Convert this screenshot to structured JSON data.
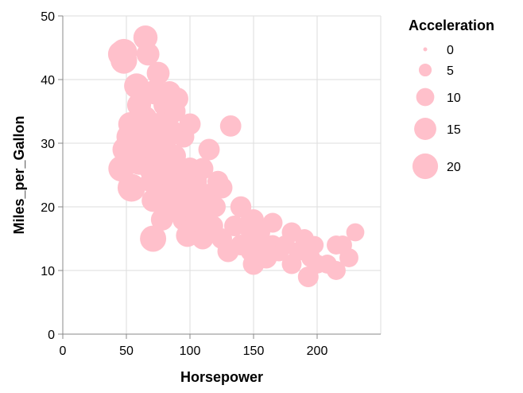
{
  "chart_data": {
    "type": "scatter",
    "xlabel": "Horsepower",
    "ylabel": "Miles_per_Gallon",
    "xlim": [
      0,
      250
    ],
    "ylim": [
      0,
      50
    ],
    "xticks": [
      0,
      50,
      100,
      150,
      200
    ],
    "yticks": [
      0,
      10,
      20,
      30,
      40,
      50
    ],
    "grid": true,
    "size_field": "Acceleration",
    "size_range": [
      0,
      25
    ],
    "point_color": "#ffc0cb",
    "legend": {
      "title": "Acceleration",
      "placement": "right",
      "values": [
        0,
        5,
        10,
        15,
        20
      ]
    },
    "points": [
      {
        "hp": 46,
        "mpg": 26,
        "acc": 20.5
      },
      {
        "hp": 46,
        "mpg": 44,
        "acc": 21.5
      },
      {
        "hp": 48,
        "mpg": 43,
        "acc": 21.5
      },
      {
        "hp": 48,
        "mpg": 44.3,
        "acc": 21.7
      },
      {
        "hp": 49,
        "mpg": 29,
        "acc": 19.5
      },
      {
        "hp": 52,
        "mpg": 31,
        "acc": 19
      },
      {
        "hp": 52,
        "mpg": 29,
        "acc": 22
      },
      {
        "hp": 53,
        "mpg": 33,
        "acc": 17.5
      },
      {
        "hp": 54,
        "mpg": 23,
        "acc": 23.5
      },
      {
        "hp": 58,
        "mpg": 39,
        "acc": 19
      },
      {
        "hp": 60,
        "mpg": 36,
        "acc": 17.5
      },
      {
        "hp": 60,
        "mpg": 27,
        "acc": 19
      },
      {
        "hp": 62,
        "mpg": 38,
        "acc": 17
      },
      {
        "hp": 63,
        "mpg": 30,
        "acc": 15.5
      },
      {
        "hp": 65,
        "mpg": 46.6,
        "acc": 17.9
      },
      {
        "hp": 65,
        "mpg": 34,
        "acc": 16
      },
      {
        "hp": 67,
        "mpg": 44,
        "acc": 16
      },
      {
        "hp": 67,
        "mpg": 33,
        "acc": 16
      },
      {
        "hp": 68,
        "mpg": 29,
        "acc": 18.5
      },
      {
        "hp": 69,
        "mpg": 26,
        "acc": 17
      },
      {
        "hp": 70,
        "mpg": 24,
        "acc": 16
      },
      {
        "hp": 70,
        "mpg": 31,
        "acc": 17
      },
      {
        "hp": 71,
        "mpg": 15,
        "acc": 21
      },
      {
        "hp": 71,
        "mpg": 21,
        "acc": 16
      },
      {
        "hp": 72,
        "mpg": 38,
        "acc": 18
      },
      {
        "hp": 74,
        "mpg": 27,
        "acc": 16
      },
      {
        "hp": 75,
        "mpg": 33,
        "acc": 15
      },
      {
        "hp": 75,
        "mpg": 41,
        "acc": 16
      },
      {
        "hp": 76,
        "mpg": 25,
        "acc": 15
      },
      {
        "hp": 78,
        "mpg": 28,
        "acc": 15.5
      },
      {
        "hp": 78,
        "mpg": 18,
        "acc": 15
      },
      {
        "hp": 80,
        "mpg": 30,
        "acc": 16
      },
      {
        "hp": 80,
        "mpg": 36,
        "acc": 15
      },
      {
        "hp": 81,
        "mpg": 24,
        "acc": 16
      },
      {
        "hp": 83,
        "mpg": 22,
        "acc": 16
      },
      {
        "hp": 84,
        "mpg": 38,
        "acc": 15
      },
      {
        "hp": 85,
        "mpg": 32,
        "acc": 15
      },
      {
        "hp": 85,
        "mpg": 26,
        "acc": 16
      },
      {
        "hp": 86,
        "mpg": 20,
        "acc": 15
      },
      {
        "hp": 88,
        "mpg": 35,
        "acc": 14.5
      },
      {
        "hp": 88,
        "mpg": 28,
        "acc": 15.5
      },
      {
        "hp": 88,
        "mpg": 22,
        "acc": 15
      },
      {
        "hp": 90,
        "mpg": 37,
        "acc": 15
      },
      {
        "hp": 90,
        "mpg": 26,
        "acc": 15
      },
      {
        "hp": 92,
        "mpg": 21,
        "acc": 15.5
      },
      {
        "hp": 95,
        "mpg": 31,
        "acc": 14
      },
      {
        "hp": 95,
        "mpg": 24,
        "acc": 14
      },
      {
        "hp": 95,
        "mpg": 18,
        "acc": 15
      },
      {
        "hp": 97,
        "mpg": 22,
        "acc": 14.5
      },
      {
        "hp": 98,
        "mpg": 15.5,
        "acc": 16
      },
      {
        "hp": 100,
        "mpg": 33,
        "acc": 14
      },
      {
        "hp": 100,
        "mpg": 26,
        "acc": 15
      },
      {
        "hp": 100,
        "mpg": 20,
        "acc": 15
      },
      {
        "hp": 102,
        "mpg": 17,
        "acc": 15
      },
      {
        "hp": 105,
        "mpg": 24,
        "acc": 14
      },
      {
        "hp": 105,
        "mpg": 18,
        "acc": 14.5
      },
      {
        "hp": 107,
        "mpg": 22,
        "acc": 14
      },
      {
        "hp": 110,
        "mpg": 15,
        "acc": 14
      },
      {
        "hp": 110,
        "mpg": 20,
        "acc": 14
      },
      {
        "hp": 110,
        "mpg": 26,
        "acc": 14
      },
      {
        "hp": 112,
        "mpg": 19,
        "acc": 13
      },
      {
        "hp": 115,
        "mpg": 29,
        "acc": 14
      },
      {
        "hp": 115,
        "mpg": 22,
        "acc": 13
      },
      {
        "hp": 118,
        "mpg": 17,
        "acc": 13
      },
      {
        "hp": 120,
        "mpg": 20,
        "acc": 13
      },
      {
        "hp": 122,
        "mpg": 24,
        "acc": 13.5
      },
      {
        "hp": 125,
        "mpg": 23,
        "acc": 14
      },
      {
        "hp": 125,
        "mpg": 15,
        "acc": 13
      },
      {
        "hp": 130,
        "mpg": 13,
        "acc": 14
      },
      {
        "hp": 132,
        "mpg": 32.7,
        "acc": 13.8
      },
      {
        "hp": 135,
        "mpg": 17,
        "acc": 13
      },
      {
        "hp": 140,
        "mpg": 20,
        "acc": 13.5
      },
      {
        "hp": 140,
        "mpg": 14,
        "acc": 13
      },
      {
        "hp": 145,
        "mpg": 17,
        "acc": 13.5
      },
      {
        "hp": 148,
        "mpg": 13,
        "acc": 13
      },
      {
        "hp": 150,
        "mpg": 11,
        "acc": 14
      },
      {
        "hp": 150,
        "mpg": 15,
        "acc": 14
      },
      {
        "hp": 150,
        "mpg": 18,
        "acc": 13
      },
      {
        "hp": 155,
        "mpg": 16,
        "acc": 13
      },
      {
        "hp": 158,
        "mpg": 14,
        "acc": 12.5
      },
      {
        "hp": 160,
        "mpg": 12,
        "acc": 14
      },
      {
        "hp": 165,
        "mpg": 17.5,
        "acc": 12
      },
      {
        "hp": 165,
        "mpg": 14,
        "acc": 12
      },
      {
        "hp": 170,
        "mpg": 13,
        "acc": 12
      },
      {
        "hp": 175,
        "mpg": 14,
        "acc": 11.5
      },
      {
        "hp": 180,
        "mpg": 16,
        "acc": 12
      },
      {
        "hp": 180,
        "mpg": 11,
        "acc": 12
      },
      {
        "hp": 185,
        "mpg": 13,
        "acc": 11
      },
      {
        "hp": 190,
        "mpg": 15,
        "acc": 11
      },
      {
        "hp": 193,
        "mpg": 9,
        "acc": 13
      },
      {
        "hp": 195,
        "mpg": 12,
        "acc": 11
      },
      {
        "hp": 198,
        "mpg": 14,
        "acc": 10
      },
      {
        "hp": 200,
        "mpg": 11,
        "acc": 11
      },
      {
        "hp": 208,
        "mpg": 11,
        "acc": 11
      },
      {
        "hp": 215,
        "mpg": 10,
        "acc": 11
      },
      {
        "hp": 215,
        "mpg": 14,
        "acc": 11
      },
      {
        "hp": 220,
        "mpg": 14,
        "acc": 11
      },
      {
        "hp": 225,
        "mpg": 12,
        "acc": 11
      },
      {
        "hp": 230,
        "mpg": 16,
        "acc": 10
      }
    ]
  }
}
